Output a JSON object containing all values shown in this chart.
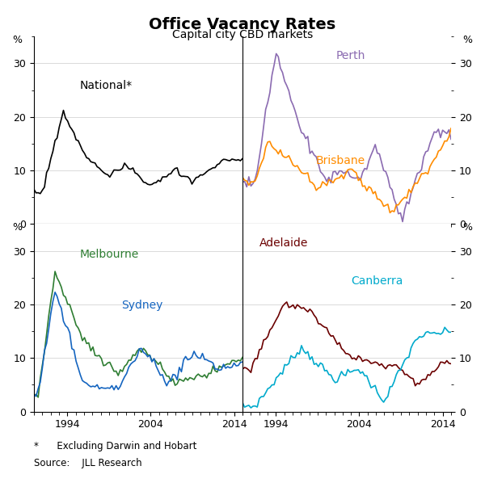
{
  "title": "Office Vacancy Rates",
  "subtitle": "Capital city CBD markets",
  "footnote": "*      Excluding Darwin and Hobart",
  "source": "Source:    JLL Research",
  "year_start": 1990,
  "year_end": 2015,
  "ylim": [
    0,
    35
  ],
  "yticks": [
    0,
    10,
    20,
    30
  ],
  "xticks": [
    1994,
    2004,
    2014
  ],
  "colors": {
    "national": "#000000",
    "perth": "#8B6BB1",
    "brisbane": "#FF8C00",
    "melbourne": "#2E7D32",
    "sydney": "#1565C0",
    "adelaide": "#6B0000",
    "canberra": "#00AACC"
  }
}
